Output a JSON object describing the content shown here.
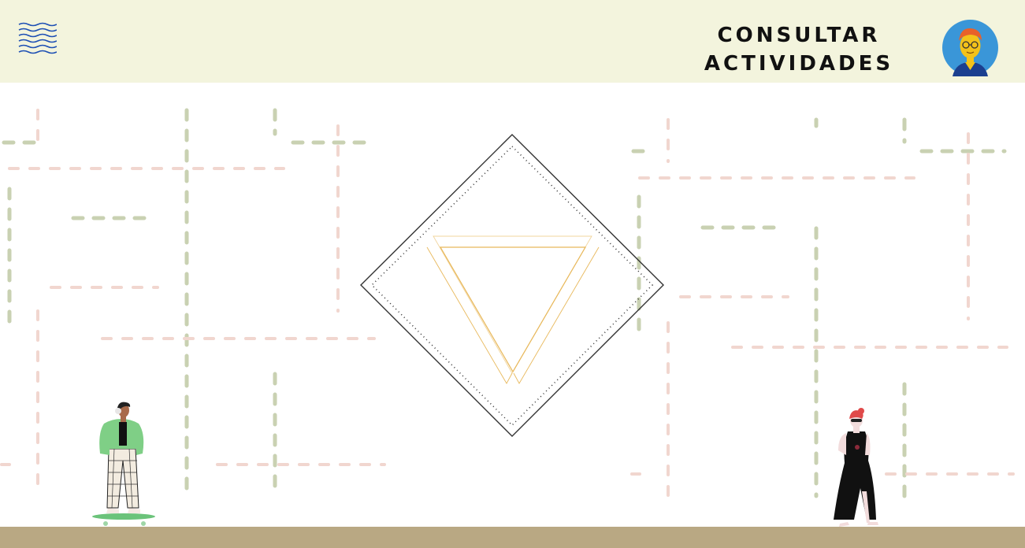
{
  "header": {
    "title_line1": "CONSULTAR",
    "title_line2": "ACTIVIDADES",
    "menu_icon": "wavy-menu-icon",
    "avatar_icon": "user-avatar-icon"
  },
  "colors": {
    "header_bg": "#f3f4dd",
    "ground": "#b9a883",
    "dash_green": "#c9d1b2",
    "dash_pink": "#f1d6cf",
    "accent_gold": "#e8b85a",
    "menu_blue": "#1d4fb4",
    "avatar_bg": "#3a96d8"
  },
  "illustrations": {
    "left_person": "skateboarder-illustration",
    "right_person": "walking-woman-illustration",
    "center": "diamond-triangle-logo"
  }
}
